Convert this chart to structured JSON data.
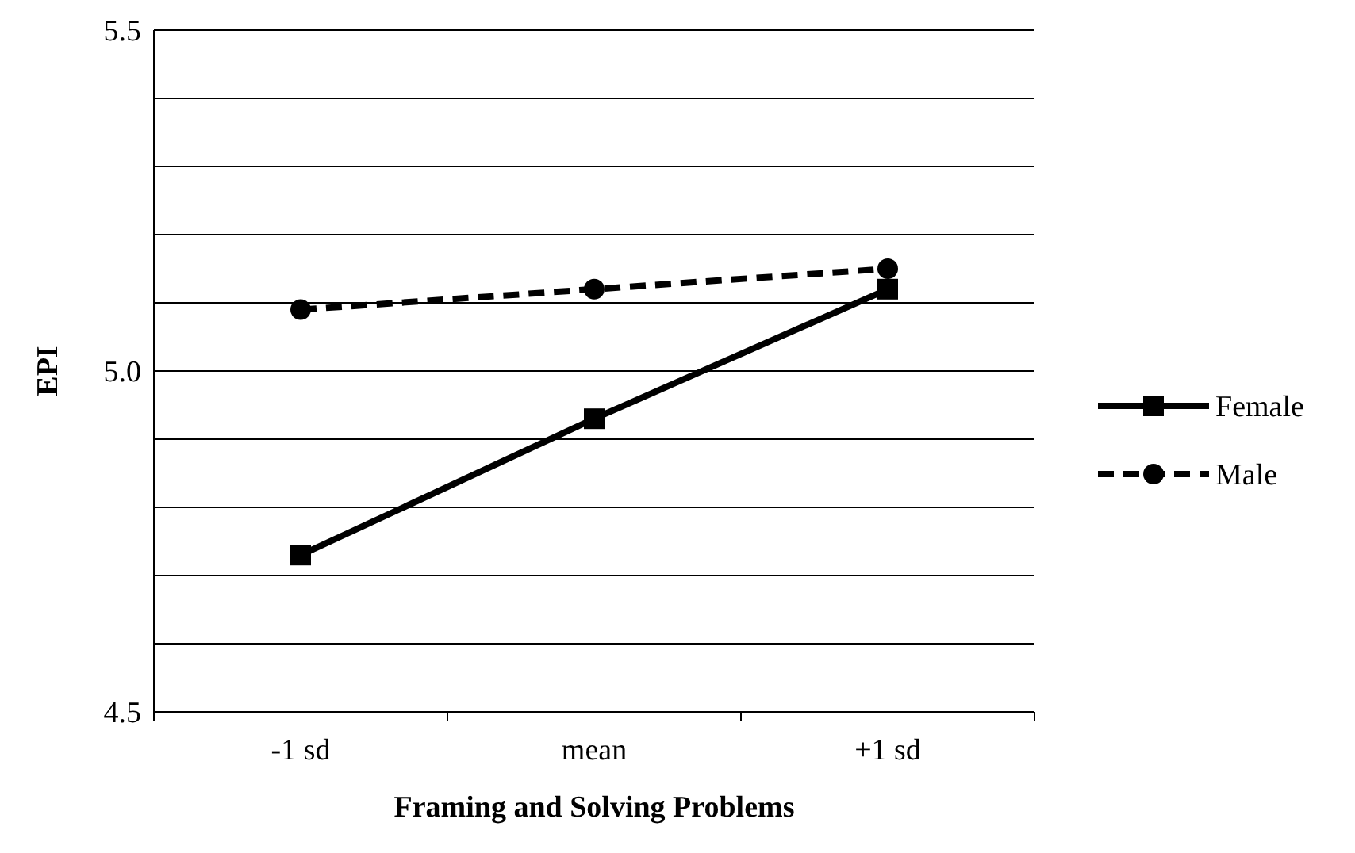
{
  "chart_data": {
    "type": "line",
    "xlabel": "Framing and Solving Problems",
    "ylabel": "EPI",
    "categories": [
      "-1 sd",
      "mean",
      "+1 sd"
    ],
    "series": [
      {
        "name": "Female",
        "color": "#000000",
        "values": [
          4.73,
          4.93,
          5.12
        ],
        "marker": "square",
        "line_style": "solid"
      },
      {
        "name": "Male",
        "color": "#000000",
        "values": [
          5.09,
          5.12,
          5.15
        ],
        "marker": "circle",
        "line_style": "dashed"
      }
    ],
    "ylim": [
      4.5,
      5.5
    ],
    "yticks": [
      {
        "value": 4.5,
        "label": "4.5"
      },
      {
        "value": 4.6,
        "label": null
      },
      {
        "value": 4.7,
        "label": null
      },
      {
        "value": 4.8,
        "label": null
      },
      {
        "value": 4.9,
        "label": null
      },
      {
        "value": 5.0,
        "label": "5.0"
      },
      {
        "value": 5.1,
        "label": null
      },
      {
        "value": 5.2,
        "label": null
      },
      {
        "value": 5.3,
        "label": null
      },
      {
        "value": 5.4,
        "label": null
      },
      {
        "value": 5.5,
        "label": "5.5"
      }
    ],
    "grid": "y",
    "legend": "right"
  }
}
